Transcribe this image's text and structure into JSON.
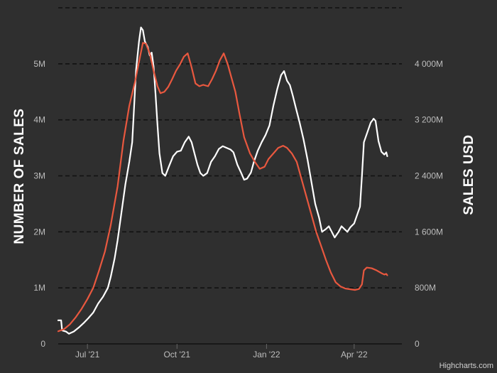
{
  "colors": {
    "background": "#2f2f2f",
    "gridline": "#111111",
    "sales_usd_line": "#e9583f",
    "number_of_sales_line": "#ffffff",
    "tick_text": "#bdbdbd"
  },
  "credits": "Highcharts.com",
  "chart_data": {
    "type": "line",
    "title": "",
    "xlabel": "",
    "x_axis": {
      "type": "datetime",
      "range": [
        "2021-06-01",
        "2022-05-20"
      ],
      "ticks": [
        {
          "date": "2021-07-01",
          "label": "Jul '21"
        },
        {
          "date": "2021-10-01",
          "label": "Oct '21"
        },
        {
          "date": "2022-01-01",
          "label": "Jan '22"
        },
        {
          "date": "2022-04-01",
          "label": "Apr '22"
        }
      ]
    },
    "y_axes": [
      {
        "id": "left",
        "title": "NUMBER OF SALES",
        "range": [
          0,
          6000000
        ],
        "ticks": [
          {
            "value": 0,
            "label": "0"
          },
          {
            "value": 1000000,
            "label": "1M"
          },
          {
            "value": 2000000,
            "label": "2M"
          },
          {
            "value": 3000000,
            "label": "3M"
          },
          {
            "value": 4000000,
            "label": "4M"
          },
          {
            "value": 5000000,
            "label": "5M"
          }
        ]
      },
      {
        "id": "right",
        "title": "SALES USD",
        "range": [
          0,
          4800000000
        ],
        "ticks": [
          {
            "value": 0,
            "label": "0"
          },
          {
            "value": 800000000,
            "label": "800M"
          },
          {
            "value": 1600000000,
            "label": "1 600M"
          },
          {
            "value": 2400000000,
            "label": "2 400M"
          },
          {
            "value": 3200000000,
            "label": "3 200M"
          },
          {
            "value": 4000000000,
            "label": "4 000M"
          }
        ]
      }
    ],
    "grid": true,
    "legend": "none",
    "series": [
      {
        "axis": "left",
        "color": "#ffffff",
        "points": [
          [
            "2021-06-01",
            420000
          ],
          [
            "2021-06-04",
            420000
          ],
          [
            "2021-06-05",
            240000
          ],
          [
            "2021-06-09",
            220000
          ],
          [
            "2021-06-12",
            180000
          ],
          [
            "2021-06-17",
            220000
          ],
          [
            "2021-06-22",
            290000
          ],
          [
            "2021-06-27",
            370000
          ],
          [
            "2021-07-02",
            460000
          ],
          [
            "2021-07-07",
            560000
          ],
          [
            "2021-07-12",
            720000
          ],
          [
            "2021-07-17",
            840000
          ],
          [
            "2021-07-22",
            1000000
          ],
          [
            "2021-07-25",
            1200000
          ],
          [
            "2021-07-29",
            1530000
          ],
          [
            "2021-08-01",
            1850000
          ],
          [
            "2021-08-05",
            2350000
          ],
          [
            "2021-08-09",
            2850000
          ],
          [
            "2021-08-13",
            3250000
          ],
          [
            "2021-08-16",
            3600000
          ],
          [
            "2021-08-18",
            4250000
          ],
          [
            "2021-08-20",
            4900000
          ],
          [
            "2021-08-23",
            5400000
          ],
          [
            "2021-08-25",
            5650000
          ],
          [
            "2021-08-27",
            5600000
          ],
          [
            "2021-08-29",
            5400000
          ],
          [
            "2021-09-01",
            5300000
          ],
          [
            "2021-09-03",
            5150000
          ],
          [
            "2021-09-05",
            5200000
          ],
          [
            "2021-09-07",
            4950000
          ],
          [
            "2021-09-09",
            4450000
          ],
          [
            "2021-09-11",
            3900000
          ],
          [
            "2021-09-13",
            3400000
          ],
          [
            "2021-09-16",
            3050000
          ],
          [
            "2021-09-19",
            3000000
          ],
          [
            "2021-09-23",
            3180000
          ],
          [
            "2021-09-27",
            3350000
          ],
          [
            "2021-10-01",
            3430000
          ],
          [
            "2021-10-05",
            3450000
          ],
          [
            "2021-10-09",
            3600000
          ],
          [
            "2021-10-13",
            3700000
          ],
          [
            "2021-10-16",
            3600000
          ],
          [
            "2021-10-19",
            3400000
          ],
          [
            "2021-10-22",
            3200000
          ],
          [
            "2021-10-25",
            3050000
          ],
          [
            "2021-10-28",
            3000000
          ],
          [
            "2021-11-01",
            3050000
          ],
          [
            "2021-11-05",
            3250000
          ],
          [
            "2021-11-09",
            3350000
          ],
          [
            "2021-11-13",
            3480000
          ],
          [
            "2021-11-17",
            3530000
          ],
          [
            "2021-11-21",
            3500000
          ],
          [
            "2021-11-25",
            3470000
          ],
          [
            "2021-11-28",
            3420000
          ],
          [
            "2021-12-02",
            3200000
          ],
          [
            "2021-12-06",
            3050000
          ],
          [
            "2021-12-09",
            2930000
          ],
          [
            "2021-12-12",
            2950000
          ],
          [
            "2021-12-16",
            3060000
          ],
          [
            "2021-12-19",
            3250000
          ],
          [
            "2021-12-23",
            3450000
          ],
          [
            "2021-12-27",
            3600000
          ],
          [
            "2021-12-31",
            3730000
          ],
          [
            "2022-01-04",
            3900000
          ],
          [
            "2022-01-08",
            4250000
          ],
          [
            "2022-01-12",
            4550000
          ],
          [
            "2022-01-16",
            4800000
          ],
          [
            "2022-01-19",
            4870000
          ],
          [
            "2022-01-22",
            4700000
          ],
          [
            "2022-01-25",
            4620000
          ],
          [
            "2022-01-28",
            4430000
          ],
          [
            "2022-01-31",
            4220000
          ],
          [
            "2022-02-04",
            3950000
          ],
          [
            "2022-02-08",
            3650000
          ],
          [
            "2022-02-12",
            3300000
          ],
          [
            "2022-02-16",
            2900000
          ],
          [
            "2022-02-20",
            2500000
          ],
          [
            "2022-02-24",
            2250000
          ],
          [
            "2022-02-27",
            2000000
          ],
          [
            "2022-03-03",
            2050000
          ],
          [
            "2022-03-06",
            2100000
          ],
          [
            "2022-03-09",
            2000000
          ],
          [
            "2022-03-12",
            1900000
          ],
          [
            "2022-03-16",
            2000000
          ],
          [
            "2022-03-19",
            2100000
          ],
          [
            "2022-03-22",
            2050000
          ],
          [
            "2022-03-25",
            2000000
          ],
          [
            "2022-03-28",
            2080000
          ],
          [
            "2022-04-01",
            2150000
          ],
          [
            "2022-04-04",
            2300000
          ],
          [
            "2022-04-07",
            2450000
          ],
          [
            "2022-04-09",
            3000000
          ],
          [
            "2022-04-11",
            3600000
          ],
          [
            "2022-04-13",
            3700000
          ],
          [
            "2022-04-15",
            3800000
          ],
          [
            "2022-04-18",
            3950000
          ],
          [
            "2022-04-21",
            4020000
          ],
          [
            "2022-04-23",
            3980000
          ],
          [
            "2022-04-26",
            3620000
          ],
          [
            "2022-04-29",
            3430000
          ],
          [
            "2022-05-02",
            3380000
          ],
          [
            "2022-05-04",
            3420000
          ],
          [
            "2022-05-05",
            3350000
          ]
        ]
      },
      {
        "axis": "right",
        "color": "#e9583f",
        "points": [
          [
            "2021-06-01",
            180000000
          ],
          [
            "2021-06-07",
            210000000
          ],
          [
            "2021-06-13",
            280000000
          ],
          [
            "2021-06-19",
            380000000
          ],
          [
            "2021-06-25",
            500000000
          ],
          [
            "2021-07-01",
            640000000
          ],
          [
            "2021-07-07",
            800000000
          ],
          [
            "2021-07-13",
            1050000000
          ],
          [
            "2021-07-19",
            1320000000
          ],
          [
            "2021-07-25",
            1700000000
          ],
          [
            "2021-08-01",
            2250000000
          ],
          [
            "2021-08-07",
            2900000000
          ],
          [
            "2021-08-13",
            3400000000
          ],
          [
            "2021-08-19",
            3750000000
          ],
          [
            "2021-08-24",
            4100000000
          ],
          [
            "2021-08-27",
            4300000000
          ],
          [
            "2021-08-30",
            4290000000
          ],
          [
            "2021-09-03",
            4150000000
          ],
          [
            "2021-09-07",
            3900000000
          ],
          [
            "2021-09-11",
            3680000000
          ],
          [
            "2021-09-14",
            3580000000
          ],
          [
            "2021-09-18",
            3600000000
          ],
          [
            "2021-09-22",
            3670000000
          ],
          [
            "2021-09-26",
            3780000000
          ],
          [
            "2021-09-30",
            3900000000
          ],
          [
            "2021-10-04",
            3990000000
          ],
          [
            "2021-10-08",
            4100000000
          ],
          [
            "2021-10-12",
            4150000000
          ],
          [
            "2021-10-16",
            3950000000
          ],
          [
            "2021-10-20",
            3720000000
          ],
          [
            "2021-10-24",
            3680000000
          ],
          [
            "2021-10-28",
            3700000000
          ],
          [
            "2021-11-02",
            3680000000
          ],
          [
            "2021-11-06",
            3780000000
          ],
          [
            "2021-11-10",
            3900000000
          ],
          [
            "2021-11-14",
            4050000000
          ],
          [
            "2021-11-18",
            4150000000
          ],
          [
            "2021-11-22",
            4000000000
          ],
          [
            "2021-11-26",
            3800000000
          ],
          [
            "2021-11-30",
            3600000000
          ],
          [
            "2021-12-04",
            3300000000
          ],
          [
            "2021-12-09",
            2950000000
          ],
          [
            "2021-12-15",
            2720000000
          ],
          [
            "2021-12-20",
            2600000000
          ],
          [
            "2021-12-25",
            2500000000
          ],
          [
            "2021-12-30",
            2530000000
          ],
          [
            "2022-01-03",
            2640000000
          ],
          [
            "2022-01-08",
            2720000000
          ],
          [
            "2022-01-13",
            2800000000
          ],
          [
            "2022-01-18",
            2830000000
          ],
          [
            "2022-01-22",
            2800000000
          ],
          [
            "2022-01-27",
            2720000000
          ],
          [
            "2022-02-01",
            2600000000
          ],
          [
            "2022-02-06",
            2350000000
          ],
          [
            "2022-02-11",
            2100000000
          ],
          [
            "2022-02-16",
            1850000000
          ],
          [
            "2022-02-21",
            1600000000
          ],
          [
            "2022-02-26",
            1400000000
          ],
          [
            "2022-03-03",
            1200000000
          ],
          [
            "2022-03-08",
            1020000000
          ],
          [
            "2022-03-13",
            880000000
          ],
          [
            "2022-03-18",
            820000000
          ],
          [
            "2022-03-23",
            790000000
          ],
          [
            "2022-03-28",
            780000000
          ],
          [
            "2022-04-02",
            770000000
          ],
          [
            "2022-04-06",
            785000000
          ],
          [
            "2022-04-09",
            850000000
          ],
          [
            "2022-04-11",
            1050000000
          ],
          [
            "2022-04-14",
            1090000000
          ],
          [
            "2022-04-19",
            1080000000
          ],
          [
            "2022-04-24",
            1050000000
          ],
          [
            "2022-04-29",
            1010000000
          ],
          [
            "2022-05-02",
            990000000
          ],
          [
            "2022-05-04",
            1000000000
          ],
          [
            "2022-05-05",
            980000000
          ]
        ]
      }
    ]
  }
}
